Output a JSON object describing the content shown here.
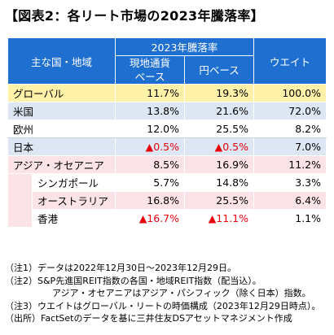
{
  "title": "【図表2：各リート市場の2023年騰落率】",
  "table": {
    "header": {
      "region": "主な国・地域",
      "group": "2023年騰落率",
      "local": "現地通貨ベース",
      "yen": "円ベース",
      "weight": "ウエイト"
    },
    "rows": [
      {
        "name": "グローバル",
        "local": "11.7%",
        "yen": "19.3%",
        "weight": "100.0%"
      },
      {
        "name": "米国",
        "local": "13.8%",
        "yen": "21.6%",
        "weight": "72.0%"
      },
      {
        "name": "欧州",
        "local": "12.0%",
        "yen": "25.5%",
        "weight": "8.2%"
      },
      {
        "name": "日本",
        "local": "▲0.5%",
        "yen": "▲0.5%",
        "weight": "7.0%"
      },
      {
        "name": "アジア・オセアニア",
        "local": "8.5%",
        "yen": "16.9%",
        "weight": "11.2%"
      },
      {
        "name": "シンガポール",
        "local": "5.7%",
        "yen": "14.8%",
        "weight": "3.3%"
      },
      {
        "name": "オーストラリア",
        "local": "16.8%",
        "yen": "25.5%",
        "weight": "6.4%"
      },
      {
        "name": "香港",
        "local": "▲16.7%",
        "yen": "▲11.1%",
        "weight": "1.1%"
      }
    ],
    "colors": {
      "header": "#1f6fd1",
      "global_row": "#fff2a8",
      "blue_row": "#dde6f3",
      "pink_row": "#fbe3e8",
      "negative": "#e8000b"
    }
  },
  "notes": [
    "（注1）データは2022年12月30日～2023年12月29日。",
    "（注2）S&P先進国REIT指数の各国・地域REIT指数（配当込）。",
    "アジア・オセアニアはアジア・パシフィック（除く日本）指数。",
    "（注3）ウエイトはグローバル・リートの時価構成（2023年12月29日時点）。",
    "（出所）FactSetのデータを基に三井住友DSアセットマネジメント作成"
  ]
}
